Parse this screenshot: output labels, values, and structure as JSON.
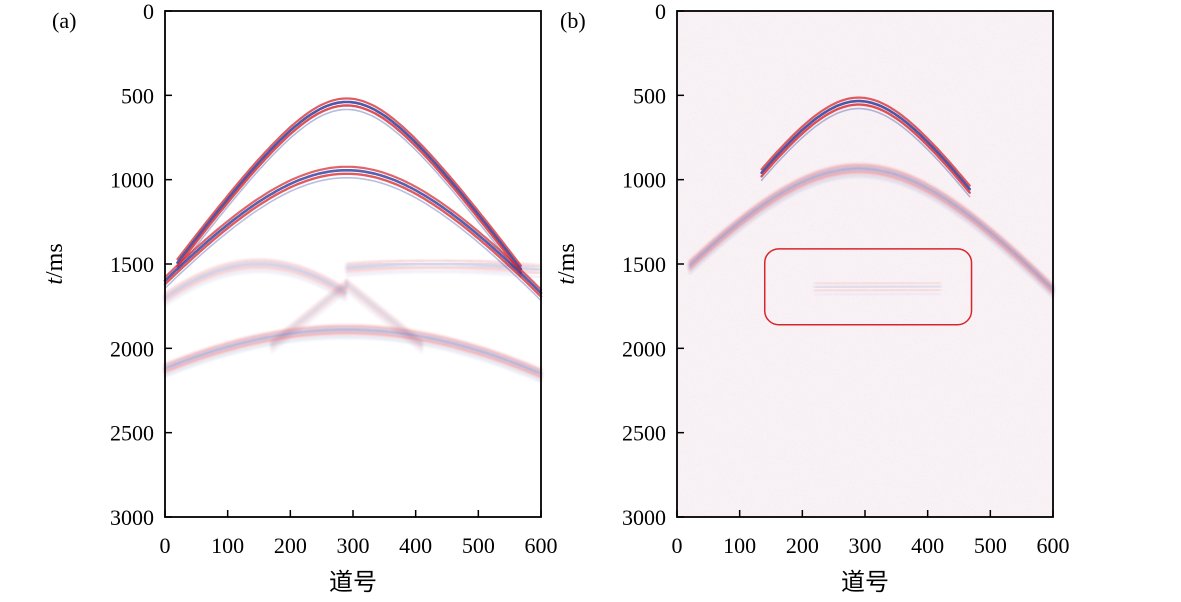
{
  "chart_data": [
    {
      "type": "heatmap",
      "panel_label": "(a)",
      "xlabel": "道号",
      "ylabel_italic": "t",
      "ylabel_unit": "/ms",
      "xlim": [
        0,
        600
      ],
      "ylim": [
        0,
        3000
      ],
      "y_inverted": true,
      "x_ticks": [
        "0",
        "100",
        "200",
        "300",
        "400",
        "500",
        "600"
      ],
      "y_ticks": [
        "0",
        "500",
        "1000",
        "1500",
        "2000",
        "2500",
        "3000"
      ],
      "colormap": {
        "positive": "#d7262b",
        "negative": "#2b3c9e",
        "zero": "#ffffff"
      },
      "noise": false,
      "events": [
        {
          "kind": "hyperbola",
          "apex_x": 290,
          "apex_t": 560,
          "t_at_x0": 1610,
          "x_start": 20,
          "x_end": 570,
          "amplitude": 1.0
        },
        {
          "kind": "hyperbola",
          "apex_x": 290,
          "apex_t": 965,
          "t_at_x0": 1620,
          "x_start": 0,
          "x_end": 600,
          "amplitude": 0.95
        },
        {
          "kind": "hyperbola",
          "apex_x": 150,
          "apex_t": 1520,
          "t_at_x0": 1720,
          "x_start": 0,
          "x_end": 290,
          "amplitude": 0.35
        },
        {
          "kind": "hyperbola",
          "apex_x": 430,
          "apex_t": 1520,
          "t_at_x0": 1730,
          "x_start": 290,
          "x_end": 600,
          "amplitude": 0.35
        },
        {
          "kind": "line",
          "x0": 170,
          "t0": 2000,
          "x1": 290,
          "t1": 1640,
          "amplitude": 0.25
        },
        {
          "kind": "line",
          "x0": 290,
          "t0": 1640,
          "x1": 410,
          "t1": 2000,
          "amplitude": 0.25
        },
        {
          "kind": "hyperbola",
          "apex_x": 290,
          "apex_t": 1910,
          "t_at_x0": 2140,
          "x_start": 0,
          "x_end": 600,
          "amplitude": 0.55
        }
      ]
    },
    {
      "type": "heatmap",
      "panel_label": "(b)",
      "xlabel": "道号",
      "ylabel_italic": "t",
      "ylabel_unit": "/ms",
      "xlim": [
        0,
        600
      ],
      "ylim": [
        0,
        3000
      ],
      "y_inverted": true,
      "x_ticks": [
        "0",
        "100",
        "200",
        "300",
        "400",
        "500",
        "600"
      ],
      "y_ticks": [
        "0",
        "500",
        "1000",
        "1500",
        "2000",
        "2500",
        "3000"
      ],
      "colormap": {
        "positive": "#d7262b",
        "negative": "#2b3c9e",
        "zero": "#ffffff"
      },
      "noise": true,
      "highlight_box": {
        "x0": 140,
        "x1": 470,
        "t0": 1410,
        "t1": 1860,
        "color": "#d7262b"
      },
      "events": [
        {
          "kind": "hyperbola",
          "apex_x": 290,
          "apex_t": 555,
          "t_at_x0": 1610,
          "x_start": 135,
          "x_end": 470,
          "amplitude": 1.0
        },
        {
          "kind": "hyperbola",
          "apex_x": 290,
          "apex_t": 955,
          "t_at_x0": 1600,
          "x_start": 20,
          "x_end": 600,
          "amplitude": 0.55
        },
        {
          "kind": "line",
          "x0": 220,
          "t0": 1660,
          "x1": 420,
          "t1": 1650,
          "amplitude": 0.2
        }
      ]
    }
  ]
}
